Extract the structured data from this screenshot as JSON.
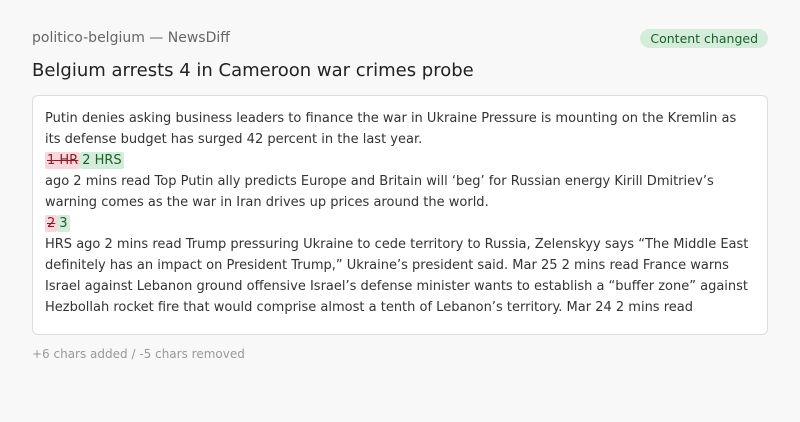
{
  "header": {
    "source": "politico-belgium — NewsDiff",
    "badge": "Content changed"
  },
  "title": "Belgium arrests 4 in Cameroon war crimes probe",
  "content": {
    "p1": "Putin denies asking business leaders to finance the war in Ukraine Pressure is mounting on the Kremlin as its defense budget has surged 42 percent in the last year.",
    "d1_removed": "1 HR",
    "d1_added": "2 HRS",
    "p2": "ago 2 mins read Top Putin ally predicts Europe and Britain will ‘beg’ for Russian energy Kirill Dmitriev’s warning comes as the war in Iran drives up prices around the world.",
    "d2_removed": "2",
    "d2_added": "3",
    "p3": "HRS ago 2 mins read Trump pressuring Ukraine to cede territory to Russia, Zelenskyy says “The Middle East definitely has an impact on President Trump,” Ukraine’s president said. Mar 25 2 mins read France warns Israel against Lebanon ground offensive Israel’s defense minister wants to establish a “buffer zone” against Hezbollah rocket fire that would comprise almost a tenth of Lebanon’s territory. Mar 24 2 mins read"
  },
  "stats": "+6 chars added / -5 chars removed",
  "colors": {
    "added_bg": "#d4edda",
    "removed_bg": "#f8d7da"
  }
}
